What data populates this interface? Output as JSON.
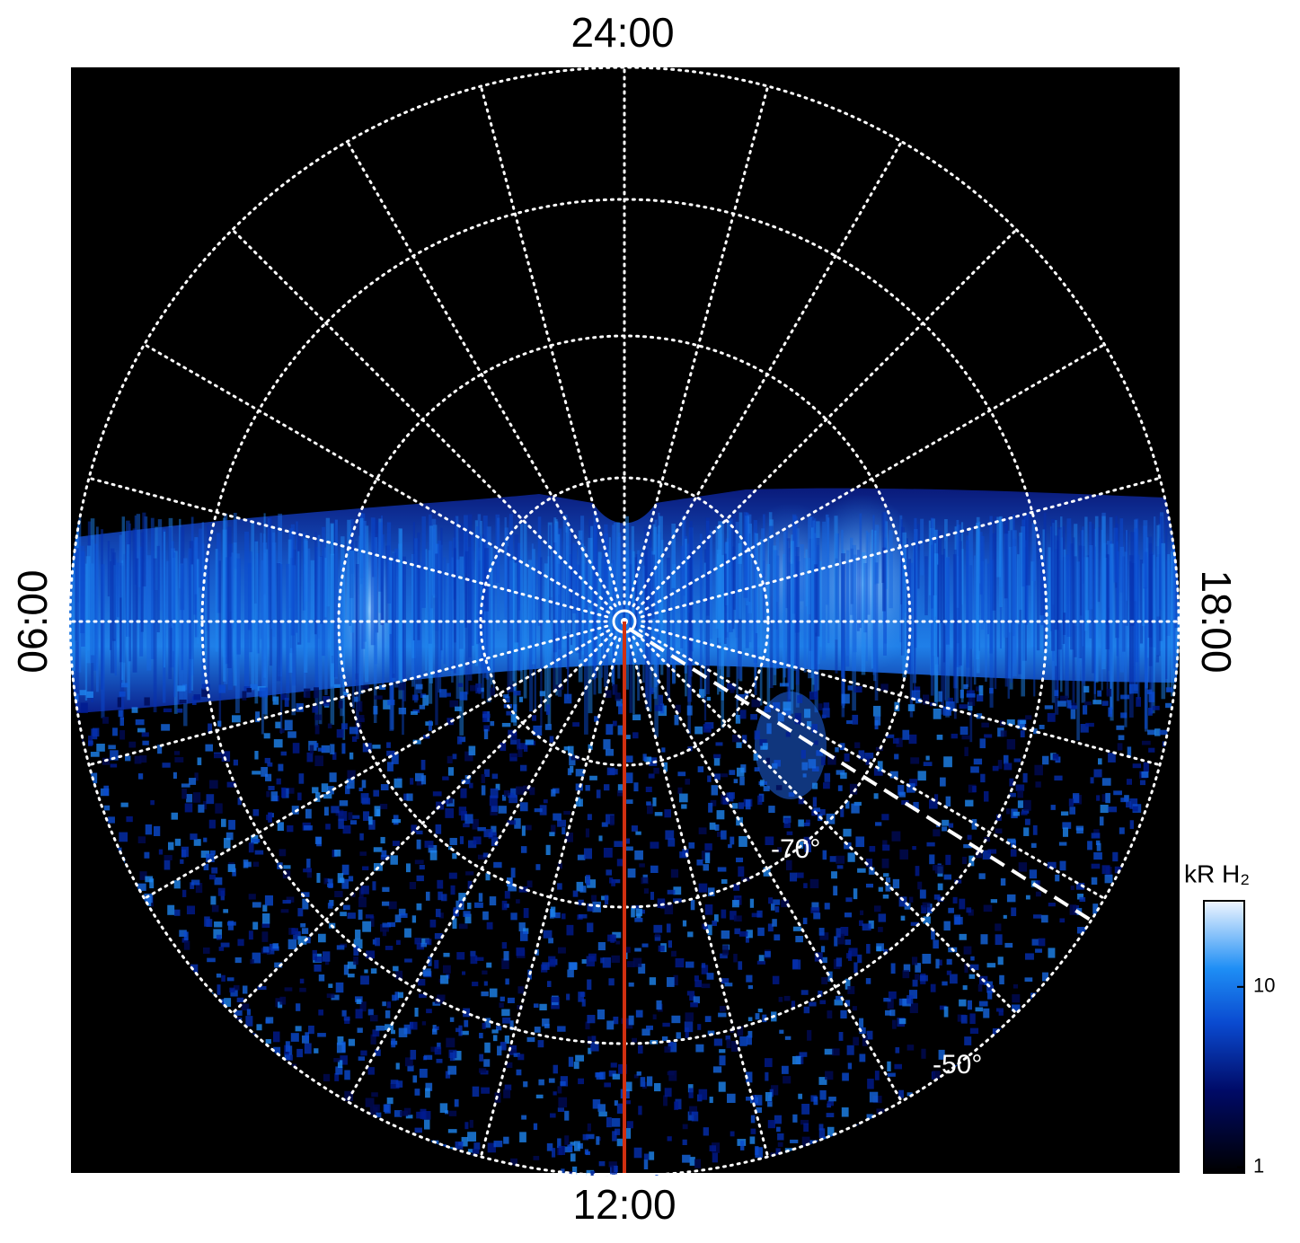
{
  "labels": {
    "top": "24:00",
    "bottom": "12:00",
    "left": "06:00",
    "right": "18:00"
  },
  "latitude_labels": [
    "-70°",
    "-50°"
  ],
  "colorbar": {
    "title": "kR H₂",
    "scale": "log",
    "lim": [
      0.93,
      30
    ],
    "ticks": [
      1,
      10
    ]
  }
}
